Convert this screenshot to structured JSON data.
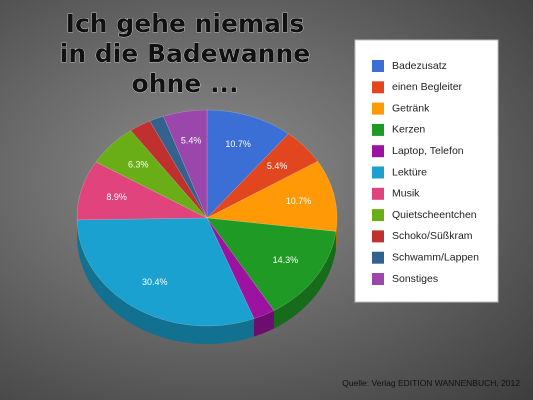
{
  "chart_data": {
    "type": "pie",
    "title_lines": [
      "Ich gehe niemals",
      "in die Badewanne",
      "ohne ..."
    ],
    "categories": [
      "Badezusatz",
      "einen Begleiter",
      "Getränk",
      "Kerzen",
      "Laptop, Telefon",
      "Lektüre",
      "Musik",
      "Quietscheentchen",
      "Schoko/Süßkram",
      "Schwamm/Lappen",
      "Sonstiges"
    ],
    "values": [
      10.7,
      5.4,
      10.7,
      14.3,
      2.7,
      30.4,
      8.9,
      6.3,
      2.7,
      1.8,
      5.4
    ],
    "value_labels": [
      "10.7%",
      "5.4%",
      "10.7%",
      "14.3%",
      null,
      "30.4%",
      "8.9%",
      "6.3%",
      null,
      null,
      "5.4%"
    ],
    "colors": [
      "#3b6fd6",
      "#e2461f",
      "#ff9a06",
      "#1f9a25",
      "#9b13a0",
      "#1aa1cf",
      "#e1447d",
      "#6aae17",
      "#c0302e",
      "#33628f",
      "#9a46ab"
    ],
    "legend": "right",
    "source": "Quelle: Verlag EDITION WANNENBUCH, 2012"
  }
}
